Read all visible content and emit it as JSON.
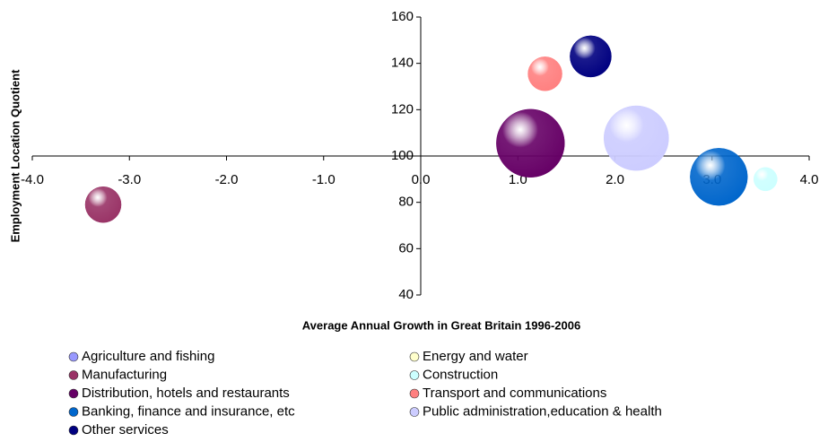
{
  "chart_data": {
    "type": "bubble",
    "x_label": "Average Annual Growth in Great Britain 1996-2006",
    "y_label": "Employment Location Quotient",
    "xlim": [
      -4,
      4
    ],
    "ylim": [
      40,
      160
    ],
    "y_cross": 100,
    "xticks": [
      {
        "value": -4,
        "label": "-4.0"
      },
      {
        "value": -3,
        "label": "-3.0"
      },
      {
        "value": -2,
        "label": "-2.0"
      },
      {
        "value": -1,
        "label": "-1.0"
      },
      {
        "value": 0,
        "label": "0.0"
      },
      {
        "value": 1,
        "label": "1.0"
      },
      {
        "value": 2,
        "label": "2.0"
      },
      {
        "value": 3,
        "label": "3.0"
      },
      {
        "value": 4,
        "label": "4.0"
      }
    ],
    "yticks": [
      40,
      60,
      80,
      100,
      120,
      140,
      160
    ],
    "series": [
      {
        "name": "Agriculture and fishing",
        "color": "#9999ff",
        "x": [
          null
        ],
        "values": [
          null
        ],
        "sizes": [
          null
        ]
      },
      {
        "name": "Manufacturing",
        "color": "#993366",
        "x": [
          -3.27
        ],
        "values": [
          79
        ],
        "sizes": [
          4
        ]
      },
      {
        "name": "Distribution, hotels and restaurants",
        "color": "#660066",
        "x": [
          1.13
        ],
        "values": [
          105.5
        ],
        "sizes": [
          14.4
        ]
      },
      {
        "name": "Banking, finance and insurance, etc",
        "color": "#0066cc",
        "x": [
          3.07
        ],
        "values": [
          91
        ],
        "sizes": [
          10.2
        ]
      },
      {
        "name": "Other services",
        "color": "#000080",
        "x": [
          1.75
        ],
        "values": [
          143
        ],
        "sizes": [
          5.3
        ]
      },
      {
        "name": "Energy and water",
        "color": "#ffffcc",
        "x": [
          null
        ],
        "values": [
          null
        ],
        "sizes": [
          null
        ]
      },
      {
        "name": "Construction",
        "color": "#ccffff",
        "x": [
          3.55
        ],
        "values": [
          90
        ],
        "sizes": [
          1.7
        ]
      },
      {
        "name": "Transport and communications",
        "color": "#ff8080",
        "x": [
          1.28
        ],
        "values": [
          135.5
        ],
        "sizes": [
          3.6
        ]
      },
      {
        "name": "Public administration,education & health",
        "color": "#ccccff",
        "x": [
          2.22
        ],
        "values": [
          107.7
        ],
        "sizes": [
          13
        ]
      }
    ]
  }
}
